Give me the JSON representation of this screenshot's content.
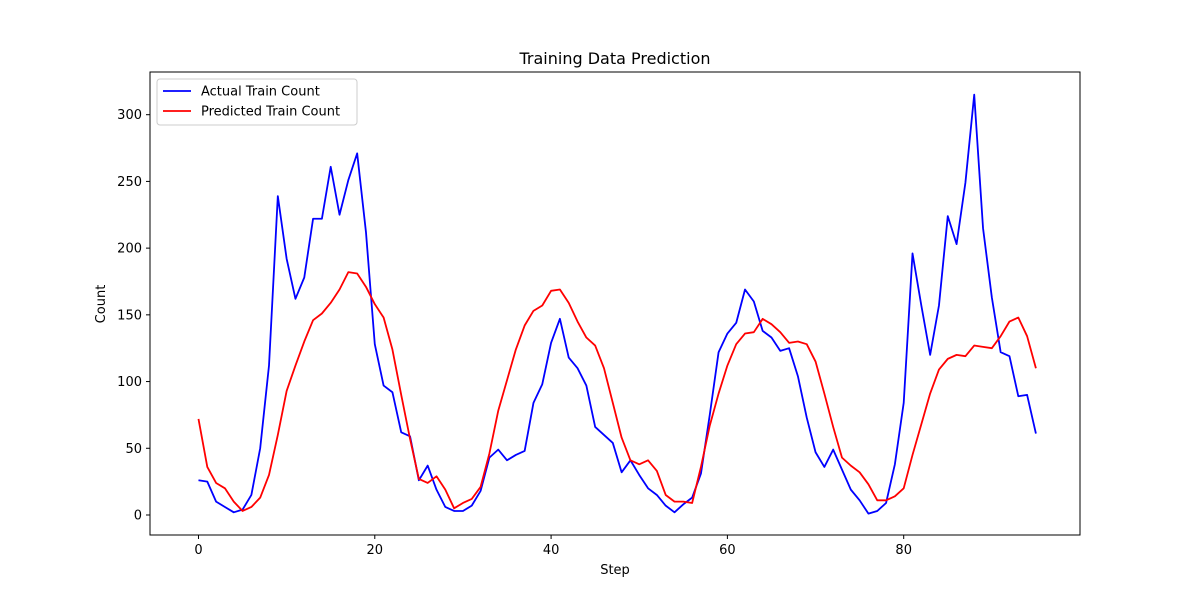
{
  "chart_data": {
    "type": "line",
    "title": "Training Data Prediction",
    "xlabel": "Step",
    "ylabel": "Count",
    "xlim": [
      -5.5,
      100
    ],
    "ylim": [
      -15,
      332
    ],
    "xticks": [
      0,
      20,
      40,
      60,
      80
    ],
    "yticks": [
      0,
      50,
      100,
      150,
      200,
      250,
      300
    ],
    "grid": false,
    "legend": "top-left",
    "series": [
      {
        "name": "Actual Train Count",
        "color": "#0000ff",
        "values": [
          26,
          25,
          10,
          6,
          2,
          4,
          15,
          50,
          112,
          239,
          192,
          162,
          178,
          222,
          222,
          261,
          225,
          251,
          271,
          212,
          128,
          97,
          92,
          62,
          59,
          26,
          37,
          19,
          6,
          3,
          3,
          7,
          18,
          43,
          49,
          41,
          45,
          48,
          84,
          98,
          129,
          147,
          118,
          110,
          97,
          66,
          60,
          54,
          32,
          41,
          30,
          20,
          15,
          7,
          2,
          8,
          13,
          31,
          75,
          122,
          136,
          144,
          169,
          160,
          138,
          133,
          123,
          125,
          104,
          73,
          47,
          36,
          49,
          34,
          19,
          11,
          1,
          3,
          9,
          38,
          84,
          196,
          157,
          120,
          157,
          224,
          203,
          249,
          315,
          215,
          163,
          122,
          119,
          89,
          90,
          61
        ]
      },
      {
        "name": "Predicted Train Count",
        "color": "#ff0000",
        "values": [
          72,
          36,
          24,
          20,
          10,
          3,
          6,
          13,
          30,
          60,
          93,
          112,
          130,
          146,
          151,
          159,
          169,
          182,
          181,
          171,
          158,
          148,
          124,
          90,
          57,
          27,
          24,
          29,
          19,
          5,
          9,
          12,
          21,
          46,
          78,
          101,
          124,
          142,
          153,
          157,
          168,
          169,
          159,
          145,
          133,
          127,
          110,
          84,
          58,
          41,
          38,
          41,
          33,
          15,
          10,
          10,
          9,
          36,
          67,
          91,
          112,
          128,
          136,
          137,
          147,
          143,
          137,
          129,
          130,
          128,
          115,
          91,
          66,
          43,
          37,
          32,
          23,
          11,
          11,
          14,
          20,
          45,
          68,
          91,
          109,
          117,
          120,
          119,
          127,
          126,
          125,
          134,
          145,
          148,
          134,
          110
        ]
      }
    ]
  }
}
